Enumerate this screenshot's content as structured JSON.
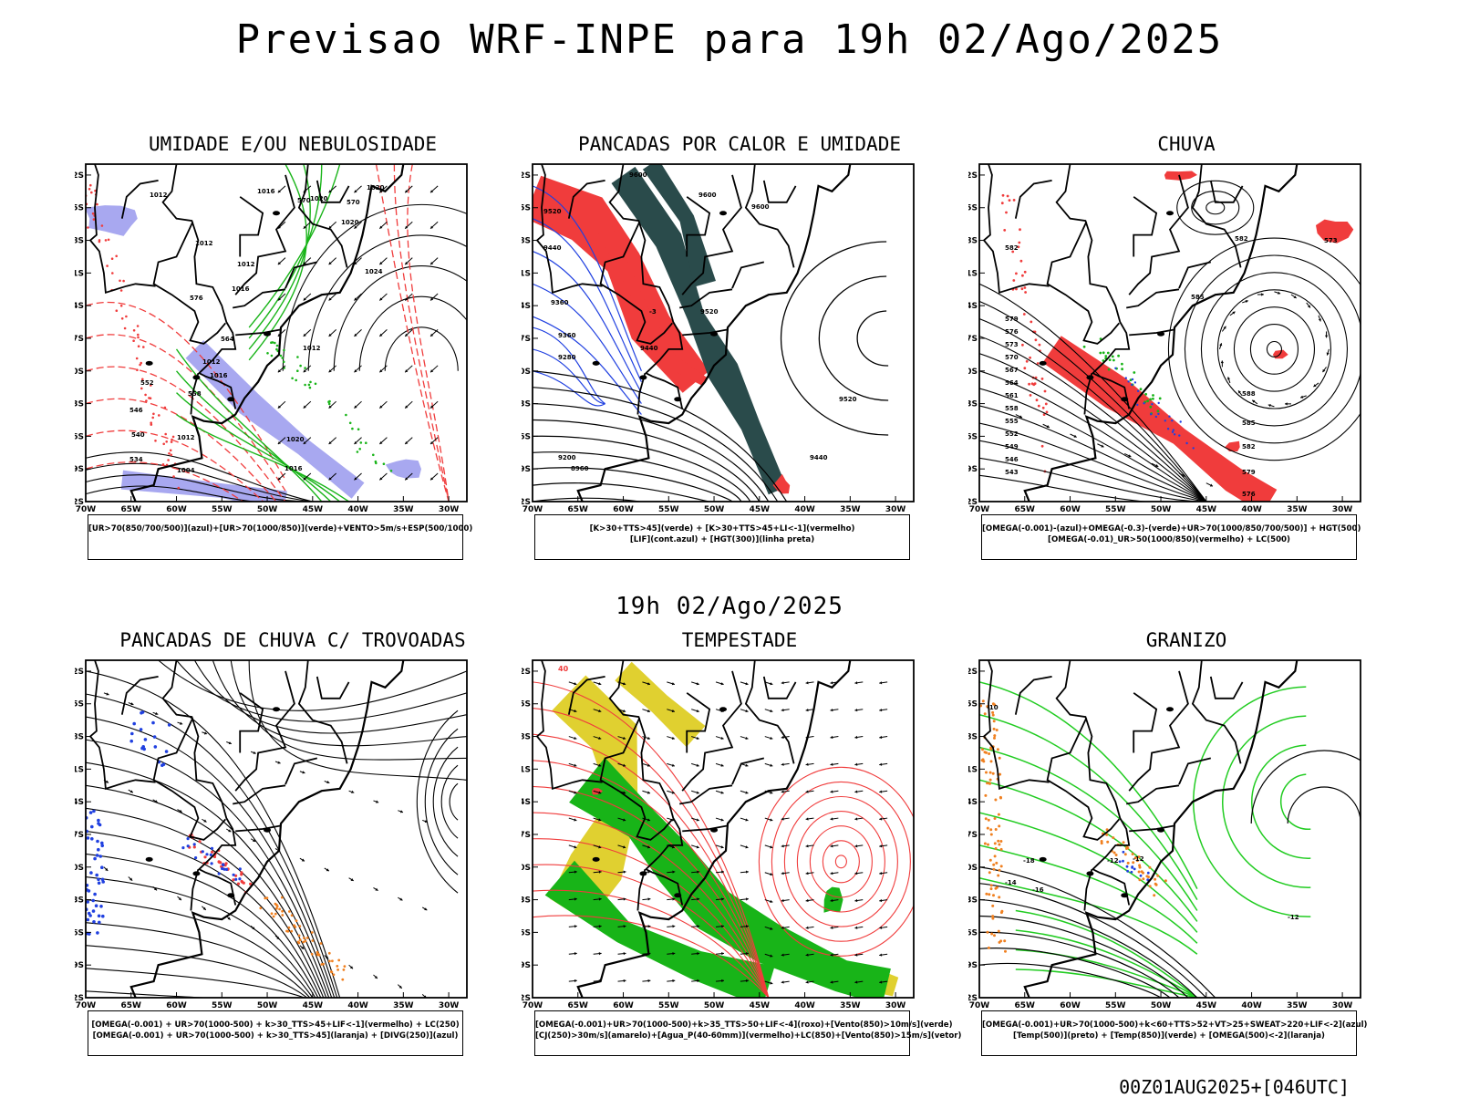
{
  "main_title": "Previsao WRF-INPE  para 19h 02/Ago/2025",
  "mid_title": "19h 02/Ago/2025",
  "footer": "00Z01AUG2025+[046UTC]",
  "lat_labels": [
    "12S",
    "15S",
    "18S",
    "21S",
    "24S",
    "27S",
    "30S",
    "33S",
    "36S",
    "39S",
    "42S"
  ],
  "lon_labels": [
    "70W",
    "65W",
    "60W",
    "55W",
    "50W",
    "45W",
    "40W",
    "35W",
    "30W"
  ],
  "panels": [
    {
      "title": "UMIDADE E/OU NEBULOSIDADE",
      "legend": [
        "[UR>70(850/700/500)](azul)+[UR>70(1000/850)](verde)+VENTO>5m/s+ESP(500/1000)"
      ],
      "contour_labels": [
        "1016",
        "1020",
        "1020",
        "1012",
        "1012",
        "1012",
        "1016",
        "1020",
        "1024",
        "1012",
        "1016",
        "1012",
        "1020",
        "1016",
        "1004",
        "1012",
        "570",
        "570",
        "576",
        "558",
        "564",
        "552",
        "546",
        "540",
        "534"
      ]
    },
    {
      "title": "PANCADAS POR CALOR E UMIDADE",
      "legend": [
        "[K>30+TTS>45](verde) + [K>30+TTS>45+LI<-1](vermelho)",
        "[LIF](cont.azul) + [HGT(300)](linha preta)"
      ],
      "contour_labels": [
        "9600",
        "9600",
        "9600",
        "9520",
        "9440",
        "9360",
        "9520",
        "9440",
        "9360",
        "9280",
        "9200",
        "9520",
        "9440",
        "8960",
        "-3"
      ]
    },
    {
      "title": "CHUVA",
      "legend": [
        "[OMEGA(-0.001)-(azul)+OMEGA(-0.3)-(verde)+UR>70(1000/850/700/500)] + HGT(500)",
        "[OMEGA(-0.01)_UR>50(1000/850)(vermelho) + LC(500)"
      ],
      "contour_labels": [
        "582",
        "582",
        "579",
        "576",
        "573",
        "570",
        "567",
        "564",
        "561",
        "558",
        "555",
        "552",
        "549",
        "546",
        "543",
        "585",
        "588",
        "585",
        "582",
        "579",
        "576",
        "573"
      ]
    },
    {
      "title": "PANCADAS DE CHUVA C/ TROVOADAS",
      "legend": [
        "[OMEGA(-0.001) + UR>70(1000-500) + k>30_TTS>45+LIF<-1](vermelho) + LC(250)",
        "[OMEGA(-0.001) + UR>70(1000-500) + k>30_TTS>45](laranja) + [DIVG(250)](azul)"
      ],
      "contour_labels": []
    },
    {
      "title": "TEMPESTADE",
      "legend": [
        "[OMEGA(-0.001)+UR>70(1000-500)+k>35_TTS>50+LIF<-4](roxo)+[Vento(850)>10m/s](verde)",
        "[CJ(250)>30m/s](amarelo)+[Agua_P(40-60mm)](vermelho)+LC(850)+[Vento(850)>15m/s](vetor)"
      ],
      "contour_labels": [
        "40"
      ]
    },
    {
      "title": "GRANIZO",
      "legend": [
        "[OMEGA(-0.001)+UR>70(1000-500)+k<60+TTS>52+VT>25+SWEAT>220+LIF<-2](azul)",
        "[Temp(500)](preto) + [Temp(850)](verde) + [OMEGA(500)<-2](laranja)"
      ],
      "contour_labels": [
        "-10",
        "-18",
        "-12",
        "-12",
        "-14",
        "-12",
        "-16"
      ]
    }
  ],
  "colors": {
    "red": "#f03c3c",
    "green": "#18b418",
    "bright_green": "#22cc22",
    "blue": "#2040e0",
    "lavender": "#a8a8f0",
    "dark_teal": "#2a4b4b",
    "yellow": "#e0d030",
    "orange": "#f08020",
    "black": "#000000"
  }
}
